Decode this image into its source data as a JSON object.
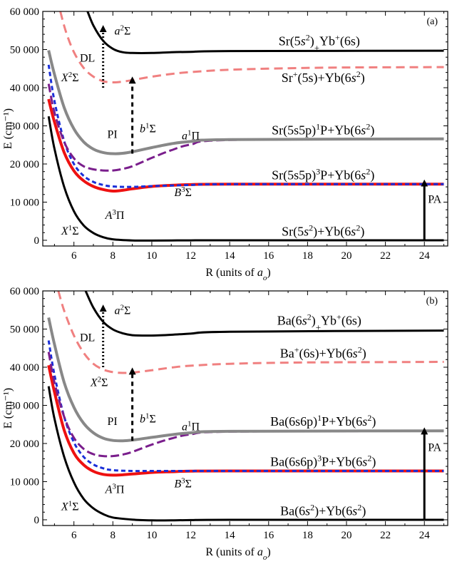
{
  "chart_data": [
    {
      "type": "line",
      "panel_label": "(a)",
      "xlabel_html": "R (units of <tspan font-style='italic'>a</tspan><tspan font-style='italic' font-size='11' baseline-shift='sub'>o</tspan>)",
      "ylabel": "E (cm⁻¹)",
      "xlim": [
        4.4,
        25.2
      ],
      "ylim": [
        -1500,
        60000
      ],
      "xticks": [
        6,
        8,
        10,
        12,
        14,
        16,
        18,
        20,
        22,
        24
      ],
      "yticks": [
        0,
        10000,
        20000,
        30000,
        40000,
        50000,
        60000
      ],
      "ytick_labels": [
        "0",
        "10 000",
        "20 000",
        "30 000",
        "40 000",
        "50 000",
        "60 000"
      ],
      "series": [
        {
          "name": "X¹Σ",
          "color": "#000000",
          "dash": "",
          "width": 3,
          "x": [
            4.7,
            5.0,
            5.5,
            6.0,
            6.5,
            7.0,
            7.5,
            8.0,
            9.0,
            10.0,
            11.0,
            12.0,
            14.0,
            25.0
          ],
          "y": [
            32500,
            24000,
            14000,
            7600,
            3900,
            1900,
            800,
            250,
            -50,
            -80,
            -50,
            -20,
            0,
            0
          ]
        },
        {
          "name": "A³Π",
          "color": "#ee1111",
          "dash": "",
          "width": 4,
          "x": [
            4.7,
            5.0,
            5.5,
            6.0,
            6.5,
            7.0,
            7.5,
            8.0,
            8.5,
            9.0,
            10.0,
            11.0,
            12.0,
            14.0,
            25.0
          ],
          "y": [
            37000,
            31000,
            23000,
            18200,
            15600,
            14100,
            13300,
            12900,
            13100,
            13500,
            14100,
            14400,
            14600,
            14700,
            14700
          ]
        },
        {
          "name": "B³Σ",
          "color": "#1a2fd8",
          "dash": "6,4",
          "width": 3,
          "x": [
            4.7,
            5.0,
            5.5,
            6.0,
            6.5,
            7.0,
            7.5,
            8.0,
            9.0,
            10.0,
            12.0,
            14.0,
            25.0
          ],
          "y": [
            46000,
            36500,
            26000,
            20000,
            16900,
            15300,
            14500,
            14100,
            14000,
            14200,
            14500,
            14700,
            14700
          ]
        },
        {
          "name": "b¹Σ",
          "color": "#7a1e8c",
          "dash": "12,5",
          "width": 3,
          "x": [
            4.7,
            5.0,
            5.5,
            6.0,
            6.5,
            7.0,
            7.5,
            8.0,
            8.5,
            9.0,
            10.0,
            11.0,
            12.0,
            14.0,
            25.0
          ],
          "y": [
            41000,
            33500,
            25800,
            21500,
            19400,
            18600,
            18300,
            18300,
            18700,
            19400,
            21600,
            23600,
            25100,
            26300,
            26600
          ]
        },
        {
          "name": "a¹Π",
          "color": "#888888",
          "dash": "",
          "width": 4,
          "x": [
            4.7,
            5.0,
            5.5,
            6.0,
            6.5,
            7.0,
            7.5,
            8.0,
            8.5,
            9.0,
            10.0,
            11.0,
            12.0,
            14.0,
            25.0
          ],
          "y": [
            49800,
            43500,
            34800,
            29200,
            25800,
            23900,
            23000,
            22700,
            22800,
            23200,
            24300,
            25300,
            25900,
            26400,
            26600
          ]
        },
        {
          "name": "X²Σ",
          "color": "#f08080",
          "dash": "12,7",
          "width": 3,
          "x": [
            5.3,
            5.6,
            6.0,
            6.5,
            7.0,
            7.5,
            8.0,
            8.5,
            9.0,
            10.0,
            11.0,
            12.0,
            14.0,
            17.0,
            20.0,
            25.0
          ],
          "y": [
            60000,
            54500,
            49300,
            45200,
            42900,
            41700,
            41400,
            41600,
            42000,
            42900,
            43600,
            44100,
            44700,
            45100,
            45300,
            45400
          ]
        },
        {
          "name": "a²Σ",
          "color": "#000000",
          "dash": "",
          "width": 3,
          "x": [
            6.7,
            7.0,
            7.5,
            8.0,
            8.5,
            9.0,
            10.0,
            11.0,
            12.0,
            14.0,
            25.0
          ],
          "y": [
            60000,
            56300,
            52300,
            50200,
            49300,
            49100,
            49100,
            49300,
            49400,
            49600,
            49700
          ]
        }
      ],
      "transitions": [
        {
          "label": "DL",
          "x": 7.5,
          "y_from": 40000,
          "y_to": 55500,
          "style": "dotted"
        },
        {
          "label": "PI",
          "x": 9.0,
          "y_from": 22700,
          "y_to": 42000,
          "style": "dashed"
        },
        {
          "label": "PA",
          "x": 24.0,
          "y_from": 0,
          "y_to": 15000,
          "style": "solid"
        }
      ],
      "annotations": [
        {
          "text_html": "<tspan font-style='italic'>a</tspan><tspan font-size='11' baseline-shift='super'>2</tspan>Σ",
          "x": 8.5,
          "y": 53900,
          "size": "ann"
        },
        {
          "text_html": "<tspan font-style='italic'>X</tspan><tspan font-size='11' baseline-shift='super'>2</tspan>Σ",
          "x": 5.8,
          "y": 41700,
          "size": "ann"
        },
        {
          "text_html": "<tspan font-style='italic'>b</tspan><tspan font-size='11' baseline-shift='super'>1</tspan>Σ",
          "x": 9.8,
          "y": 28300,
          "size": "ann"
        },
        {
          "text_html": "<tspan font-style='italic'>a</tspan><tspan font-size='11' baseline-shift='super'>1</tspan>Π",
          "x": 12.0,
          "y": 26400,
          "size": "ann"
        },
        {
          "text_html": "<tspan font-style='italic'>B</tspan><tspan font-size='11' baseline-shift='super'>3</tspan>Σ",
          "x": 11.6,
          "y": 11600,
          "size": "ann"
        },
        {
          "text_html": "<tspan font-style='italic'>A</tspan><tspan font-size='11' baseline-shift='super'>3</tspan>Π",
          "x": 8.1,
          "y": 5600,
          "size": "ann"
        },
        {
          "text_html": "<tspan font-style='italic'>X</tspan><tspan font-size='11' baseline-shift='super'>1</tspan>Σ",
          "x": 5.8,
          "y": 1500,
          "size": "ann"
        },
        {
          "text_html": "Sr(5<tspan font-style='italic'>s</tspan><tspan font-size='12' baseline-shift='super'>2</tspan>)<tspan font-size='13' baseline-shift='sub'>+</tspan>Yb<tspan font-size='12' baseline-shift='super'>+</tspan>(6s)",
          "x": 18.6,
          "y": 51100,
          "size": "bigann"
        },
        {
          "text_html": "Sr<tspan font-size='12' baseline-shift='super'>+</tspan>(5s)+Yb(6<tspan font-style='italic'>s</tspan><tspan font-size='12' baseline-shift='super'>2</tspan>)",
          "x": 18.8,
          "y": 41500,
          "size": "bigann"
        },
        {
          "text_html": "Sr(5s5p)<tspan font-size='12' baseline-shift='super'>1</tspan>P+Yb(6<tspan font-style='italic'>s</tspan><tspan font-size='12' baseline-shift='super'>2</tspan>)",
          "x": 18.8,
          "y": 27800,
          "size": "bigann"
        },
        {
          "text_html": "Sr(5s5p)<tspan font-size='12' baseline-shift='super'>3</tspan>P+Yb(6<tspan font-style='italic'>s</tspan><tspan font-size='12' baseline-shift='super'>2</tspan>)",
          "x": 18.8,
          "y": 16000,
          "size": "bigann"
        },
        {
          "text_html": "Sr(5<tspan font-style='italic'>s</tspan><tspan font-size='12' baseline-shift='super'>2</tspan>)+Yb(6<tspan font-style='italic'>s</tspan><tspan font-size='12' baseline-shift='super'>2</tspan>)",
          "x": 18.8,
          "y": 1200,
          "size": "bigann"
        }
      ]
    },
    {
      "type": "line",
      "panel_label": "(b)",
      "xlabel_html": "R (units of <tspan font-style='italic'>a</tspan><tspan font-style='italic' font-size='11' baseline-shift='sub'>o</tspan>)",
      "ylabel": "E (cm⁻¹)",
      "xlim": [
        4.4,
        25.2
      ],
      "ylim": [
        -1500,
        60000
      ],
      "xticks": [
        6,
        8,
        10,
        12,
        14,
        16,
        18,
        20,
        22,
        24
      ],
      "yticks": [
        0,
        10000,
        20000,
        30000,
        40000,
        50000,
        60000
      ],
      "ytick_labels": [
        "0",
        "10 000",
        "20 000",
        "30 000",
        "40 000",
        "50 000",
        "60 000"
      ],
      "series": [
        {
          "name": "X¹Σ",
          "color": "#000000",
          "dash": "",
          "width": 3,
          "x": [
            4.7,
            5.0,
            5.5,
            6.0,
            6.5,
            7.0,
            7.5,
            8.0,
            9.0,
            10.0,
            11.0,
            12.0,
            14.0,
            25.0
          ],
          "y": [
            35000,
            26500,
            16500,
            9800,
            5500,
            3000,
            1500,
            600,
            50,
            -150,
            -150,
            -80,
            0,
            0
          ]
        },
        {
          "name": "A³Π",
          "color": "#ee1111",
          "dash": "",
          "width": 4,
          "x": [
            4.7,
            5.0,
            5.5,
            6.0,
            6.5,
            7.0,
            7.5,
            8.0,
            8.5,
            9.0,
            10.0,
            11.0,
            12.0,
            14.0,
            25.0
          ],
          "y": [
            40500,
            33500,
            23500,
            17500,
            14400,
            12700,
            11900,
            11700,
            11800,
            12000,
            12400,
            12600,
            12750,
            12800,
            12800
          ]
        },
        {
          "name": "B³Σ",
          "color": "#1a2fd8",
          "dash": "6,4",
          "width": 3,
          "x": [
            4.7,
            5.0,
            5.5,
            6.0,
            6.5,
            7.0,
            7.5,
            8.0,
            9.0,
            10.0,
            12.0,
            14.0,
            25.0
          ],
          "y": [
            47000,
            38000,
            27000,
            20300,
            16500,
            14500,
            13500,
            13000,
            12800,
            12800,
            12800,
            12800,
            12800
          ]
        },
        {
          "name": "b¹Σ",
          "color": "#7a1e8c",
          "dash": "12,5",
          "width": 3,
          "x": [
            4.7,
            5.0,
            5.5,
            6.0,
            6.5,
            7.0,
            7.5,
            8.0,
            8.5,
            9.0,
            10.0,
            11.0,
            12.0,
            14.0,
            25.0
          ],
          "y": [
            44000,
            36000,
            27000,
            21500,
            18600,
            17200,
            16700,
            16700,
            17100,
            17800,
            19700,
            21300,
            22400,
            23100,
            23300
          ]
        },
        {
          "name": "a¹Π",
          "color": "#888888",
          "dash": "",
          "width": 4,
          "x": [
            4.7,
            5.0,
            5.5,
            6.0,
            6.5,
            7.0,
            7.5,
            8.0,
            8.5,
            9.0,
            10.0,
            11.0,
            12.0,
            14.0,
            25.0
          ],
          "y": [
            53000,
            46000,
            36000,
            29500,
            25300,
            22800,
            21400,
            20800,
            20700,
            20900,
            21600,
            22300,
            22800,
            23200,
            23300
          ]
        },
        {
          "name": "X²Σ",
          "color": "#f08080",
          "dash": "12,7",
          "width": 3,
          "x": [
            5.2,
            5.5,
            6.0,
            6.5,
            7.0,
            7.5,
            8.0,
            8.5,
            9.0,
            10.0,
            11.0,
            12.0,
            14.0,
            17.0,
            20.0,
            25.0
          ],
          "y": [
            60000,
            54800,
            48300,
            43800,
            40900,
            39400,
            38700,
            38500,
            38600,
            39200,
            39900,
            40400,
            40900,
            41200,
            41300,
            41400
          ]
        },
        {
          "name": "a²Σ",
          "color": "#000000",
          "dash": "",
          "width": 3,
          "x": [
            6.6,
            7.0,
            7.5,
            8.0,
            8.5,
            9.0,
            10.0,
            11.0,
            12.0,
            14.0,
            25.0
          ],
          "y": [
            60000,
            55600,
            51900,
            49900,
            48900,
            48400,
            48300,
            48500,
            48800,
            49300,
            49600
          ]
        }
      ],
      "transitions": [
        {
          "label": "DL",
          "x": 7.5,
          "y_from": 40000,
          "y_to": 55500,
          "style": "dotted"
        },
        {
          "label": "PI",
          "x": 9.0,
          "y_from": 20700,
          "y_to": 39000,
          "style": "dashed"
        },
        {
          "label": "PA",
          "x": 24.0,
          "y_from": 0,
          "y_to": 23300,
          "style": "solid"
        }
      ],
      "annotations": [
        {
          "text_html": "<tspan font-style='italic'>a</tspan><tspan font-size='11' baseline-shift='super'>2</tspan>Σ",
          "x": 8.5,
          "y": 53900,
          "size": "ann"
        },
        {
          "text_html": "<tspan font-style='italic'>X</tspan><tspan font-size='11' baseline-shift='super'>2</tspan>Σ",
          "x": 7.3,
          "y": 35000,
          "size": "ann"
        },
        {
          "text_html": "<tspan font-style='italic'>b</tspan><tspan font-size='11' baseline-shift='super'>1</tspan>Σ",
          "x": 9.8,
          "y": 25500,
          "size": "ann"
        },
        {
          "text_html": "<tspan font-style='italic'>a</tspan><tspan font-size='11' baseline-shift='super'>1</tspan>Π",
          "x": 12.0,
          "y": 23500,
          "size": "ann"
        },
        {
          "text_html": "<tspan font-style='italic'>B</tspan><tspan font-size='11' baseline-shift='super'>3</tspan>Σ",
          "x": 11.6,
          "y": 8500,
          "size": "ann"
        },
        {
          "text_html": "<tspan font-style='italic'>A</tspan><tspan font-size='11' baseline-shift='super'>3</tspan>Π",
          "x": 8.1,
          "y": 7000,
          "size": "ann"
        },
        {
          "text_html": "<tspan font-style='italic'>X</tspan><tspan font-size='11' baseline-shift='super'>1</tspan>Σ",
          "x": 5.8,
          "y": 2500,
          "size": "ann"
        },
        {
          "text_html": "Ba(6<tspan font-style='italic'>s</tspan><tspan font-size='12' baseline-shift='super'>2</tspan>)<tspan font-size='13' baseline-shift='sub'>+</tspan>Yb<tspan font-size='12' baseline-shift='super'>+</tspan>(6s)",
          "x": 18.6,
          "y": 51100,
          "size": "bigann"
        },
        {
          "text_html": "Ba<tspan font-size='12' baseline-shift='super'>+</tspan>(6s)+Yb(6<tspan font-style='italic'>s</tspan><tspan font-size='12' baseline-shift='super'>2</tspan>)",
          "x": 18.8,
          "y": 42500,
          "size": "bigann"
        },
        {
          "text_html": "Ba(6s6p)<tspan font-size='12' baseline-shift='super'>1</tspan>P+Yb(6<tspan font-style='italic'>s</tspan><tspan font-size='12' baseline-shift='super'>2</tspan>)",
          "x": 18.8,
          "y": 24700,
          "size": "bigann"
        },
        {
          "text_html": "Ba(6s6p)<tspan font-size='12' baseline-shift='super'>3</tspan>P+Yb(6<tspan font-style='italic'>s</tspan><tspan font-size='12' baseline-shift='super'>2</tspan>)",
          "x": 18.8,
          "y": 14100,
          "size": "bigann"
        },
        {
          "text_html": "Ba(6<tspan font-style='italic'>s</tspan><tspan font-size='12' baseline-shift='super'>2</tspan>)+Yb(6<tspan font-style='italic'>s</tspan><tspan font-size='12' baseline-shift='super'>2</tspan>)",
          "x": 18.8,
          "y": 1200,
          "size": "bigann"
        }
      ]
    }
  ]
}
